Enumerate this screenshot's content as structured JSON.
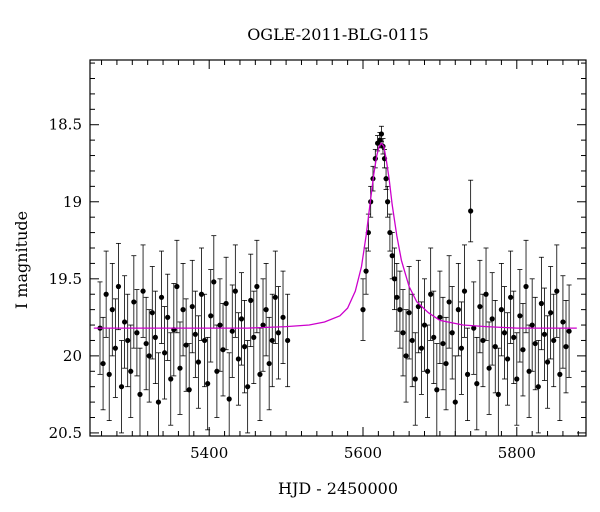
{
  "chart_data": {
    "type": "scatter",
    "title": "OGLE-2011-BLG-0115",
    "xlabel": "HJD - 2450000",
    "ylabel": "I magnitude",
    "xlim": [
      5245,
      5890
    ],
    "ylim": [
      20.52,
      18.08
    ],
    "y_inverted": true,
    "grid": false,
    "legend": "none",
    "x_ticks": [
      5400,
      5600,
      5800
    ],
    "x_tick_labels": [
      "5400",
      "5600",
      "5800"
    ],
    "y_ticks": [
      18.5,
      19,
      19.5,
      20,
      20.5
    ],
    "y_tick_labels": [
      "18.5",
      "19",
      "19.5",
      "20",
      "20.5"
    ],
    "colors": {
      "data": "#000000",
      "model": "#cc00cc"
    },
    "series": [
      {
        "kind": "points_with_errorbars",
        "x": [
          5258,
          5262,
          5266,
          5270,
          5274,
          5278,
          5282,
          5286,
          5290,
          5294,
          5298,
          5302,
          5306,
          5310,
          5314,
          5318,
          5322,
          5326,
          5330,
          5334,
          5338,
          5342,
          5346,
          5350,
          5354,
          5358,
          5362,
          5366,
          5370,
          5374,
          5378,
          5382,
          5386,
          5390,
          5394,
          5398,
          5402,
          5406,
          5410,
          5414,
          5418,
          5422,
          5426,
          5430,
          5434,
          5438,
          5442,
          5446,
          5450,
          5454,
          5458,
          5462,
          5466,
          5470,
          5474,
          5478,
          5482,
          5486,
          5490,
          5496,
          5502,
          5600,
          5604,
          5607,
          5610,
          5613,
          5616,
          5619,
          5622,
          5624,
          5626,
          5628,
          5630,
          5632,
          5635,
          5638,
          5641,
          5644,
          5648,
          5652,
          5656,
          5660,
          5664,
          5668,
          5672,
          5676,
          5680,
          5684,
          5688,
          5692,
          5696,
          5700,
          5704,
          5708,
          5712,
          5716,
          5720,
          5724,
          5728,
          5732,
          5736,
          5740,
          5744,
          5748,
          5752,
          5756,
          5760,
          5764,
          5768,
          5772,
          5776,
          5780,
          5784,
          5788,
          5792,
          5796,
          5800,
          5804,
          5808,
          5812,
          5816,
          5820,
          5824,
          5828,
          5832,
          5836,
          5840,
          5844,
          5848,
          5852,
          5856,
          5860,
          5864,
          5868
        ],
        "y": [
          19.82,
          20.05,
          19.6,
          20.12,
          19.7,
          19.95,
          19.55,
          20.2,
          19.78,
          19.9,
          20.1,
          19.65,
          19.85,
          20.25,
          19.58,
          19.92,
          20.0,
          19.72,
          19.88,
          20.3,
          19.62,
          19.98,
          19.75,
          20.15,
          19.83,
          19.55,
          20.08,
          19.7,
          19.93,
          20.22,
          19.68,
          19.86,
          20.04,
          19.6,
          19.9,
          20.18,
          19.74,
          19.52,
          20.1,
          19.8,
          19.96,
          19.66,
          20.28,
          19.84,
          19.58,
          20.02,
          19.76,
          19.94,
          20.2,
          19.64,
          19.88,
          19.55,
          20.12,
          19.8,
          19.7,
          20.05,
          19.9,
          19.62,
          19.85,
          19.75,
          19.9,
          19.7,
          19.45,
          19.2,
          19.0,
          18.85,
          18.72,
          18.62,
          18.6,
          18.56,
          18.64,
          18.72,
          18.85,
          19.0,
          19.2,
          19.35,
          19.5,
          19.62,
          19.7,
          19.85,
          20.0,
          19.72,
          19.9,
          20.15,
          19.68,
          19.95,
          19.8,
          20.1,
          19.6,
          19.88,
          20.22,
          19.75,
          19.92,
          20.05,
          19.65,
          19.85,
          20.3,
          19.7,
          19.95,
          19.58,
          20.12,
          19.06,
          19.82,
          20.18,
          19.68,
          19.9,
          19.6,
          20.08,
          19.76,
          19.94,
          20.25,
          19.7,
          19.85,
          20.02,
          19.62,
          19.88,
          20.15,
          19.74,
          19.96,
          19.55,
          20.1,
          19.8,
          19.92,
          20.2,
          19.66,
          19.86,
          20.04,
          19.72,
          19.9,
          19.58,
          20.12,
          19.78,
          19.94,
          19.84
        ],
        "err": [
          0.3,
          0.3,
          0.28,
          0.3,
          0.3,
          0.32,
          0.28,
          0.3,
          0.3,
          0.3,
          0.3,
          0.3,
          0.28,
          0.3,
          0.3,
          0.3,
          0.3,
          0.3,
          0.3,
          0.32,
          0.3,
          0.3,
          0.28,
          0.3,
          0.3,
          0.3,
          0.3,
          0.3,
          0.3,
          0.3,
          0.3,
          0.28,
          0.3,
          0.3,
          0.3,
          0.3,
          0.3,
          0.3,
          0.3,
          0.3,
          0.3,
          0.3,
          0.3,
          0.3,
          0.3,
          0.3,
          0.3,
          0.3,
          0.3,
          0.3,
          0.3,
          0.3,
          0.3,
          0.3,
          0.3,
          0.3,
          0.3,
          0.3,
          0.3,
          0.3,
          0.3,
          0.2,
          0.15,
          0.12,
          0.1,
          0.08,
          0.06,
          0.05,
          0.05,
          0.05,
          0.05,
          0.06,
          0.07,
          0.1,
          0.12,
          0.15,
          0.2,
          0.22,
          0.25,
          0.28,
          0.3,
          0.3,
          0.3,
          0.3,
          0.3,
          0.3,
          0.3,
          0.3,
          0.3,
          0.3,
          0.3,
          0.3,
          0.3,
          0.3,
          0.3,
          0.3,
          0.3,
          0.3,
          0.3,
          0.3,
          0.3,
          0.2,
          0.3,
          0.3,
          0.3,
          0.3,
          0.3,
          0.3,
          0.3,
          0.3,
          0.3,
          0.3,
          0.3,
          0.3,
          0.3,
          0.3,
          0.3,
          0.3,
          0.3,
          0.3,
          0.3,
          0.3,
          0.3,
          0.3,
          0.3,
          0.3,
          0.3,
          0.3,
          0.3,
          0.3,
          0.3,
          0.3,
          0.3,
          0.3
        ]
      },
      {
        "kind": "model_curve",
        "x": [
          5250,
          5300,
          5350,
          5400,
          5450,
          5500,
          5530,
          5550,
          5570,
          5580,
          5590,
          5598,
          5604,
          5610,
          5614,
          5618,
          5621,
          5624,
          5627,
          5630,
          5634,
          5638,
          5644,
          5650,
          5660,
          5670,
          5685,
          5700,
          5730,
          5760,
          5800,
          5840,
          5878
        ],
        "y": [
          19.82,
          19.82,
          19.82,
          19.82,
          19.82,
          19.81,
          19.8,
          19.78,
          19.74,
          19.69,
          19.58,
          19.42,
          19.22,
          18.98,
          18.82,
          18.7,
          18.64,
          18.62,
          18.64,
          18.72,
          18.85,
          19.02,
          19.22,
          19.38,
          19.55,
          19.65,
          19.72,
          19.77,
          19.8,
          19.81,
          19.82,
          19.82,
          19.82
        ]
      }
    ]
  }
}
